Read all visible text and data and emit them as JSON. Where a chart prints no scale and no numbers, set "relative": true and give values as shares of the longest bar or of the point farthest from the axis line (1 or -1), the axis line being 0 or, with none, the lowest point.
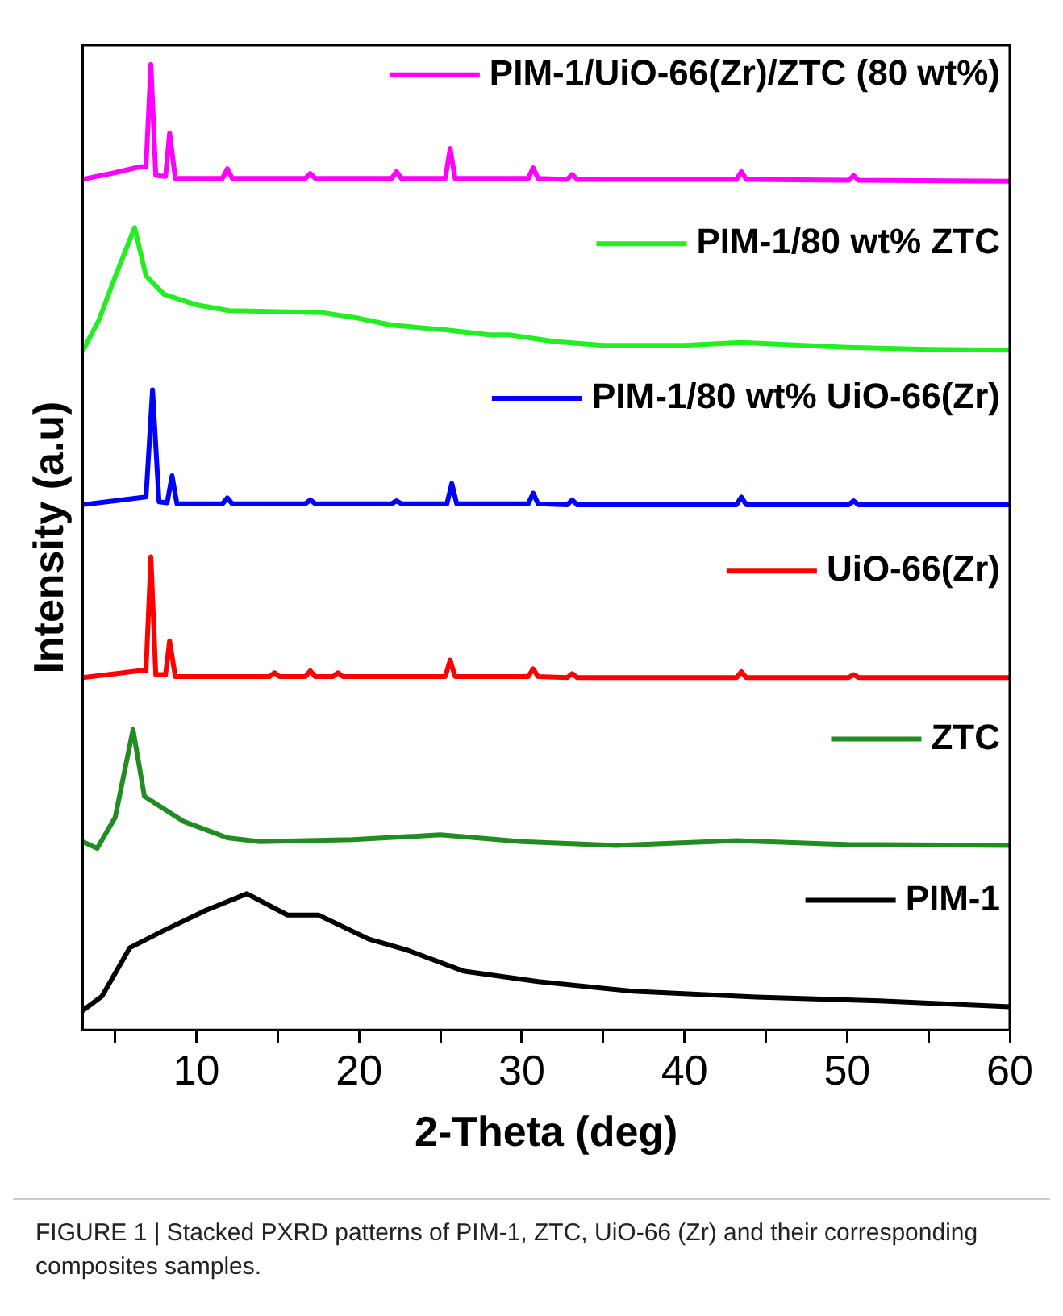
{
  "chart_data": {
    "type": "line",
    "relative": true,
    "xlabel": "2-Theta (deg)",
    "ylabel": "Intensity (a.u)",
    "xlim": [
      3,
      60
    ],
    "xticks": [
      {
        "value": 5,
        "label": null
      },
      10,
      {
        "value": 15,
        "label": null
      },
      20,
      {
        "value": 25,
        "label": null
      },
      30,
      {
        "value": 35,
        "label": null
      },
      40,
      {
        "value": 45,
        "label": null
      },
      50,
      {
        "value": 55,
        "label": null
      },
      60
    ],
    "marker": "none",
    "line_style": "solid",
    "grid": false,
    "legend": "right",
    "series": [
      {
        "name": "PIM-1/UiO-66(Zr)/ZTC (80 wt%)",
        "color": "#ff00ff",
        "x": [
          3,
          5,
          6.5,
          6.9,
          7.2,
          7.5,
          8.1,
          8.35,
          8.7,
          11.6,
          11.9,
          12.2,
          16.7,
          17.0,
          17.3,
          22.0,
          22.3,
          22.6,
          25.3,
          25.6,
          25.9,
          30.4,
          30.7,
          31.0,
          32.8,
          33.1,
          33.4,
          43.2,
          43.5,
          43.8,
          50.1,
          50.4,
          50.7,
          60
        ],
        "values": [
          0.881,
          0.888,
          0.894,
          0.894,
          1.0,
          0.885,
          0.884,
          0.929,
          0.882,
          0.882,
          0.892,
          0.882,
          0.882,
          0.887,
          0.882,
          0.882,
          0.889,
          0.882,
          0.882,
          0.913,
          0.882,
          0.882,
          0.893,
          0.882,
          0.881,
          0.886,
          0.881,
          0.881,
          0.889,
          0.881,
          0.88,
          0.885,
          0.88,
          0.879
        ]
      },
      {
        "name": "PIM-1/80 wt% ZTC",
        "color": "#22ee22",
        "x": [
          3,
          4,
          5,
          6.2,
          6.9,
          8,
          10,
          12,
          15,
          17.7,
          20,
          22,
          25.4,
          28,
          29.2,
          32,
          35,
          40,
          43.5,
          50,
          55,
          60
        ],
        "values": [
          0.703,
          0.735,
          0.78,
          0.831,
          0.781,
          0.762,
          0.751,
          0.745,
          0.744,
          0.743,
          0.737,
          0.73,
          0.725,
          0.72,
          0.72,
          0.713,
          0.709,
          0.709,
          0.712,
          0.707,
          0.705,
          0.704
        ]
      },
      {
        "name": "PIM-1/80 wt% UiO-66(Zr)",
        "color": "#0000ff",
        "x": [
          3,
          5,
          6.4,
          6.9,
          7.3,
          7.7,
          8.2,
          8.5,
          8.8,
          11.6,
          11.9,
          12.2,
          16.7,
          17.0,
          17.3,
          22.0,
          22.3,
          22.6,
          25.4,
          25.7,
          26.0,
          30.4,
          30.7,
          31.0,
          32.8,
          33.1,
          33.4,
          43.2,
          43.5,
          43.8,
          50.1,
          50.4,
          50.7,
          60
        ],
        "values": [
          0.544,
          0.548,
          0.551,
          0.552,
          0.663,
          0.547,
          0.546,
          0.574,
          0.545,
          0.545,
          0.551,
          0.545,
          0.545,
          0.549,
          0.545,
          0.545,
          0.548,
          0.545,
          0.545,
          0.566,
          0.545,
          0.545,
          0.556,
          0.545,
          0.544,
          0.549,
          0.544,
          0.544,
          0.552,
          0.544,
          0.544,
          0.548,
          0.544,
          0.544
        ]
      },
      {
        "name": "UiO-66(Zr)",
        "color": "#ff0000",
        "x": [
          3,
          5,
          6.5,
          6.9,
          7.2,
          7.5,
          8.1,
          8.35,
          8.7,
          14.5,
          14.8,
          15.1,
          16.7,
          17.0,
          17.3,
          18.4,
          18.7,
          19.0,
          25.3,
          25.6,
          25.9,
          30.4,
          30.7,
          31.0,
          32.8,
          33.1,
          33.4,
          43.2,
          43.5,
          43.8,
          50.1,
          50.4,
          50.7,
          60
        ],
        "values": [
          0.365,
          0.369,
          0.372,
          0.372,
          0.49,
          0.368,
          0.368,
          0.403,
          0.366,
          0.366,
          0.37,
          0.366,
          0.366,
          0.372,
          0.366,
          0.366,
          0.37,
          0.366,
          0.366,
          0.383,
          0.366,
          0.366,
          0.374,
          0.366,
          0.365,
          0.369,
          0.365,
          0.365,
          0.371,
          0.365,
          0.365,
          0.368,
          0.365,
          0.365
        ]
      },
      {
        "name": "ZTC",
        "color": "#228b22",
        "x": [
          3,
          3.9,
          5,
          6.1,
          6.8,
          9.2,
          11.9,
          13.9,
          19.6,
          25,
          30,
          35.8,
          43.2,
          50,
          60
        ],
        "values": [
          0.195,
          0.188,
          0.22,
          0.311,
          0.242,
          0.216,
          0.199,
          0.195,
          0.197,
          0.202,
          0.195,
          0.191,
          0.196,
          0.192,
          0.191
        ]
      },
      {
        "name": "PIM-1",
        "color": "#000000",
        "x": [
          3,
          4.2,
          5.9,
          8,
          10.6,
          13.1,
          15.6,
          17.5,
          20.6,
          22.9,
          26.4,
          31,
          36.8,
          44.4,
          52,
          60
        ],
        "values": [
          0.02,
          0.035,
          0.085,
          0.103,
          0.124,
          0.141,
          0.119,
          0.119,
          0.094,
          0.083,
          0.061,
          0.05,
          0.04,
          0.034,
          0.03,
          0.024
        ]
      }
    ],
    "annotations": [
      "FIGURE 1 | Stacked PXRD patterns of PIM-1, ZTC, UiO-66 (Zr) and their corresponding composites samples."
    ]
  }
}
